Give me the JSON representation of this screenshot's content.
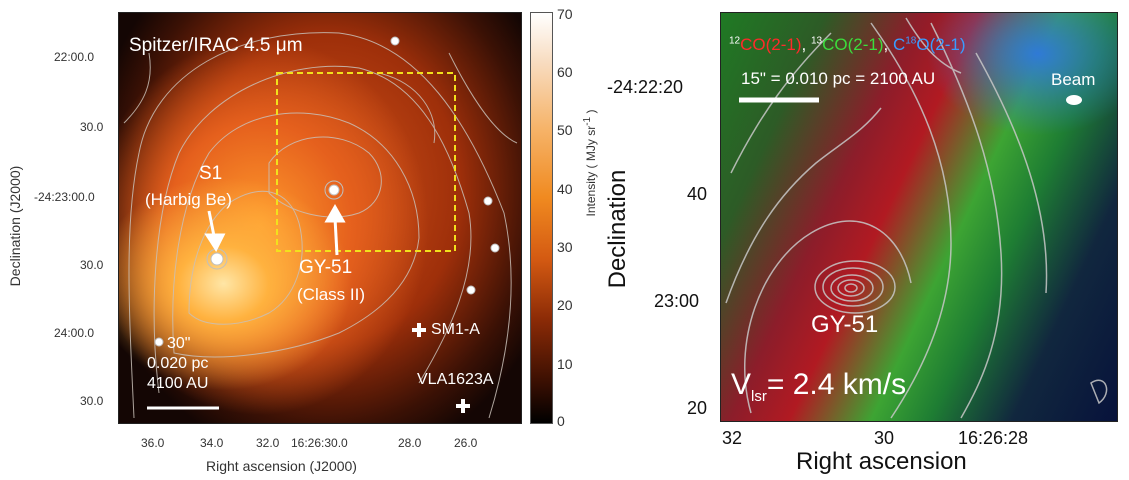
{
  "left_panel": {
    "title": "Spitzer/IRAC 4.5 μm",
    "source_s1_name": "S1",
    "source_s1_desc": "(Harbig Be)",
    "source_gy51_name": "GY-51",
    "source_gy51_desc": "(Class II)",
    "sm1a_label": "SM1-A",
    "vla_label": "VLA1623A",
    "scale_line1": "30\"",
    "scale_line2": "0.020 pc",
    "scale_line3": "4100 AU",
    "ylabel": "Declination (J2000)",
    "xlabel": "Right ascension (J2000)",
    "yticks": [
      "22:00.0",
      "30.0",
      "-24:23:00.0",
      "30.0",
      "24:00.0",
      "30.0"
    ],
    "xticks": [
      "36.0",
      "34.0",
      "32.0",
      "16:26:30.0",
      "28.0",
      "26.0"
    ],
    "colorbar_label": "Intensity ( MJy sr",
    "colorbar_label_sup": "-1",
    "colorbar_label_end": " )",
    "colorbar_ticks": [
      "70",
      "60",
      "50",
      "40",
      "30",
      "20",
      "10",
      "0"
    ],
    "box_color": "#f2e11c"
  },
  "right_panel": {
    "legend_12co_sup": "12",
    "legend_12co": "CO(2-1)",
    "legend_sep1": ", ",
    "legend_13co_sup": "13",
    "legend_13co": "CO(2-1)",
    "legend_sep2": ", ",
    "legend_c18o_pre": "C",
    "legend_c18o_sup": "18",
    "legend_c18o": "O(2-1)",
    "scale_text": "15\" = 0.010 pc = 2100 AU",
    "beam_label": "Beam",
    "source_label": "GY-51",
    "vlsr_v": "V",
    "vlsr_sub": "lsr",
    "vlsr_rest": "= 2.4 km/s",
    "ylabel": "Declination",
    "xlabel": "Right ascension",
    "yticks": [
      "-24:22:20",
      "40",
      "23:00",
      "20"
    ],
    "xticks": [
      "32",
      "30",
      "16:26:28"
    ],
    "color_12co": "#e8202a",
    "color_13co": "#35d43b",
    "color_c18o": "#2f8cf0"
  }
}
